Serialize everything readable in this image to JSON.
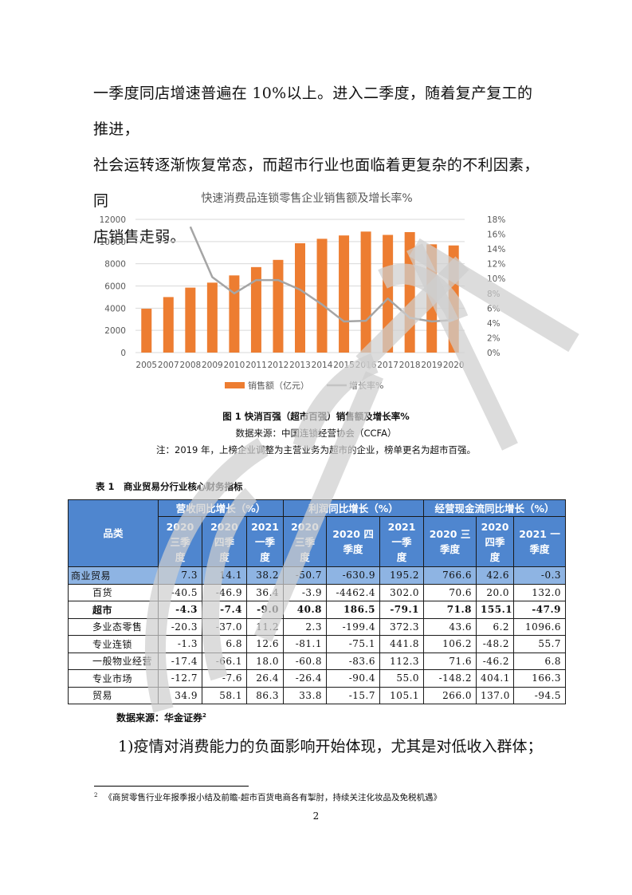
{
  "body_text": {
    "line1": "一季度同店增速普遍在 10%以上。进入二季度，随着复产复工的推进，",
    "line2": "社会运转逐渐恢复常态，而超市行业也面临着更复杂的不利因素，同",
    "line3": "店销售走弱。"
  },
  "figure": {
    "caption": "图 1 快消百强（超市百强）销售额及增长率%",
    "source": "数据来源：中国连锁经营协会（CCFA）",
    "note": "注：2019 年，上榜企业调整为主营业务为超市的企业，榜单更名为超市百强。"
  },
  "chart_data": {
    "type": "bar",
    "title": "快速消费品连锁零售企业销售额及增长率%",
    "categories": [
      "2005",
      "2007",
      "2008",
      "2009",
      "2010",
      "2011",
      "2012",
      "2013",
      "2014",
      "2015",
      "2016",
      "2017",
      "2018",
      "2019",
      "2020"
    ],
    "series": [
      {
        "name": "销售额（亿元）",
        "type": "bar",
        "axis": "left",
        "color": "#ed7d31",
        "values": [
          3950,
          5000,
          5850,
          6300,
          6950,
          7700,
          8350,
          9850,
          10250,
          10550,
          10900,
          10600,
          10850,
          9750,
          9650
        ]
      },
      {
        "name": "增长率%",
        "type": "line",
        "axis": "right",
        "color": "#a5a5a5",
        "values": [
          null,
          null,
          17.0,
          10.2,
          8.0,
          9.8,
          9.8,
          8.5,
          6.5,
          4.2,
          4.3,
          7.3,
          4.7,
          4.2,
          4.4
        ]
      }
    ],
    "xlabel": "",
    "ylabel": "",
    "ylim": [
      0,
      12000
    ],
    "yticks": [
      "0",
      "2000",
      "4000",
      "6000",
      "8000",
      "10000",
      "12000"
    ],
    "y2lim": [
      0,
      18
    ],
    "y2ticks": [
      "0%",
      "2%",
      "4%",
      "6%",
      "8%",
      "10%",
      "12%",
      "14%",
      "16%",
      "18%"
    ],
    "grid": true,
    "legend_position": "bottom"
  },
  "table": {
    "title": "表 1　商业贸易分行业核心财务指标",
    "category_header": "品类",
    "groups": [
      {
        "label": "营收同比增长（%）",
        "cols": [
          "2020三季度",
          "2020四季度",
          "2021一季度"
        ]
      },
      {
        "label": "利润同比增长（%）",
        "cols": [
          "2020三季度",
          "2020四季度",
          "2021一季度"
        ]
      },
      {
        "label": "经营现金流同比增长（%）",
        "cols": [
          "2020三季度",
          "2020四季度",
          "2021一季度"
        ]
      }
    ],
    "col_headers": {
      "c1": [
        "2020",
        "三季",
        "度"
      ],
      "c2": [
        "2020",
        "四季",
        "度"
      ],
      "c3": [
        "2021",
        "一季",
        "度"
      ],
      "c4": [
        "2020",
        "三季",
        "度"
      ],
      "c5": [
        "2020 四",
        "季度"
      ],
      "c6": [
        "2021",
        "一季",
        "度"
      ],
      "c7": [
        "2020 三",
        "季度"
      ],
      "c8": [
        "2020",
        "四季",
        "度"
      ],
      "c9": [
        "2021 一",
        "季度"
      ]
    },
    "rows": [
      {
        "category": "商业贸易",
        "values": [
          "7.3",
          "14.1",
          "38.2",
          "-50.7",
          "-630.9",
          "195.2",
          "766.6",
          "42.6",
          "-0.3"
        ]
      },
      {
        "category": "百货",
        "values": [
          "-40.5",
          "-46.9",
          "36.4",
          "-3.9",
          "-4462.4",
          "302.0",
          "70.6",
          "20.0",
          "132.0"
        ]
      },
      {
        "category": "超市",
        "values": [
          "-4.3",
          "-7.4",
          "-9.0",
          "40.8",
          "186.5",
          "-79.1",
          "71.8",
          "155.1",
          "-47.9"
        ]
      },
      {
        "category": "多业态零售",
        "values": [
          "-20.3",
          "-37.0",
          "11.2",
          "2.3",
          "-199.4",
          "372.3",
          "43.6",
          "6.2",
          "1096.6"
        ]
      },
      {
        "category": "专业连锁",
        "values": [
          "-1.3",
          "6.8",
          "12.6",
          "-81.1",
          "-75.1",
          "441.8",
          "106.2",
          "-48.2",
          "55.7"
        ]
      },
      {
        "category": "一般物业经营",
        "values": [
          "-17.4",
          "-66.1",
          "18.0",
          "-60.8",
          "-83.6",
          "112.3",
          "71.6",
          "-46.2",
          "6.8"
        ]
      },
      {
        "category": "专业市场",
        "values": [
          "-12.7",
          "-7.6",
          "26.4",
          "-26.4",
          "-90.4",
          "55.0",
          "-148.2",
          "404.1",
          "166.3"
        ]
      },
      {
        "category": "贸易",
        "values": [
          "34.9",
          "58.1",
          "86.3",
          "33.8",
          "-15.7",
          "105.1",
          "266.0",
          "137.0",
          "-94.5"
        ]
      }
    ],
    "source": "数据来源：华金证券",
    "source_sup": "2"
  },
  "list_item_1": "1)疫情对消费能力的负面影响开始体现，尤其是对低收入群体；",
  "footnote": {
    "marker": "2",
    "text": "《商贸零售行业年报季报小结及前瞻-超市百货电商各有掣肘，持续关注化妆品及免税机遇》"
  },
  "page_number": "2",
  "watermark": "CCFA"
}
